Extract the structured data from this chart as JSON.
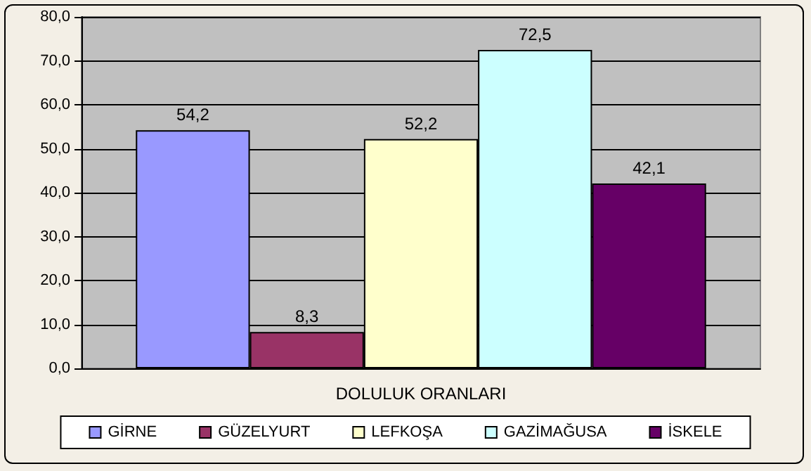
{
  "chart_data": {
    "type": "bar",
    "categories": [
      "DOLULUK ORANLARI"
    ],
    "series": [
      {
        "name": "GİRNE",
        "color": "#9999ff",
        "values": [
          54.2
        ],
        "value_labels": [
          "54,2"
        ]
      },
      {
        "name": "GÜZELYURT",
        "color": "#993366",
        "values": [
          8.3
        ],
        "value_labels": [
          "8,3"
        ]
      },
      {
        "name": "LEFKOŞA",
        "color": "#ffffcc",
        "values": [
          52.2
        ],
        "value_labels": [
          "52,2"
        ]
      },
      {
        "name": "GAZİMAĞUSA",
        "color": "#ccffff",
        "values": [
          72.5
        ],
        "value_labels": [
          "72,5"
        ]
      },
      {
        "name": "İSKELE",
        "color": "#660066",
        "values": [
          42.1
        ],
        "value_labels": [
          "42,1"
        ]
      }
    ],
    "ylim": [
      0,
      80
    ],
    "yticks": [
      {
        "value": 0,
        "label": "0,0"
      },
      {
        "value": 10,
        "label": "10,0"
      },
      {
        "value": 20,
        "label": "20,0"
      },
      {
        "value": 30,
        "label": "30,0"
      },
      {
        "value": 40,
        "label": "40,0"
      },
      {
        "value": 50,
        "label": "50,0"
      },
      {
        "value": 60,
        "label": "60,0"
      },
      {
        "value": 70,
        "label": "70,0"
      },
      {
        "value": 80,
        "label": "80,0"
      }
    ],
    "grid": "y",
    "legend": "bottom"
  }
}
